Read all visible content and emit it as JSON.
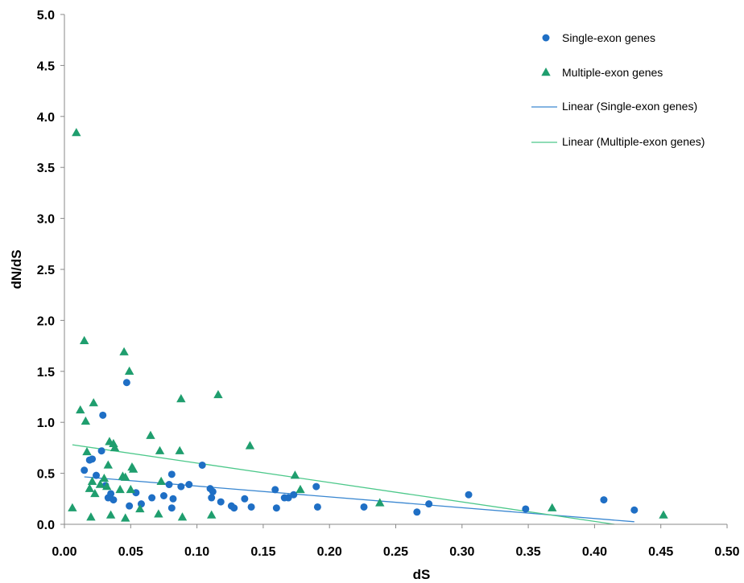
{
  "chart_data": {
    "type": "scatter",
    "title": "",
    "xlabel": "dS",
    "ylabel": "dN/dS",
    "xlim": [
      0,
      0.5
    ],
    "ylim": [
      0,
      5
    ],
    "xticks": [
      "0.00",
      "0.05",
      "0.10",
      "0.15",
      "0.20",
      "0.25",
      "0.30",
      "0.35",
      "0.40",
      "0.45",
      "0.50"
    ],
    "yticks": [
      "0.0",
      "0.5",
      "1.0",
      "1.5",
      "2.0",
      "2.5",
      "3.0",
      "3.5",
      "4.0",
      "4.5",
      "5.0"
    ],
    "grid": false,
    "legend_position": "top-right",
    "series": [
      {
        "name": "Single-exon genes",
        "marker": "circle",
        "color": "#1f6fc5",
        "points": [
          [
            0.015,
            0.53
          ],
          [
            0.019,
            0.63
          ],
          [
            0.021,
            0.64
          ],
          [
            0.024,
            0.48
          ],
          [
            0.028,
            0.72
          ],
          [
            0.029,
            1.07
          ],
          [
            0.031,
            0.38
          ],
          [
            0.033,
            0.26
          ],
          [
            0.035,
            0.3
          ],
          [
            0.037,
            0.24
          ],
          [
            0.047,
            1.39
          ],
          [
            0.049,
            0.18
          ],
          [
            0.054,
            0.31
          ],
          [
            0.058,
            0.2
          ],
          [
            0.066,
            0.26
          ],
          [
            0.075,
            0.28
          ],
          [
            0.079,
            0.39
          ],
          [
            0.081,
            0.49
          ],
          [
            0.081,
            0.16
          ],
          [
            0.082,
            0.25
          ],
          [
            0.088,
            0.37
          ],
          [
            0.094,
            0.39
          ],
          [
            0.104,
            0.58
          ],
          [
            0.11,
            0.35
          ],
          [
            0.111,
            0.26
          ],
          [
            0.112,
            0.32
          ],
          [
            0.118,
            0.22
          ],
          [
            0.126,
            0.18
          ],
          [
            0.128,
            0.16
          ],
          [
            0.136,
            0.25
          ],
          [
            0.141,
            0.17
          ],
          [
            0.159,
            0.34
          ],
          [
            0.16,
            0.16
          ],
          [
            0.166,
            0.26
          ],
          [
            0.169,
            0.26
          ],
          [
            0.173,
            0.29
          ],
          [
            0.19,
            0.37
          ],
          [
            0.191,
            0.17
          ],
          [
            0.226,
            0.17
          ],
          [
            0.266,
            0.12
          ],
          [
            0.275,
            0.2
          ],
          [
            0.305,
            0.29
          ],
          [
            0.348,
            0.15
          ],
          [
            0.407,
            0.24
          ],
          [
            0.43,
            0.14
          ]
        ]
      },
      {
        "name": "Multiple-exon genes",
        "marker": "triangle",
        "color": "#1f9e6e",
        "points": [
          [
            0.006,
            0.16
          ],
          [
            0.009,
            3.84
          ],
          [
            0.012,
            1.12
          ],
          [
            0.015,
            1.8
          ],
          [
            0.016,
            1.01
          ],
          [
            0.017,
            0.71
          ],
          [
            0.019,
            0.35
          ],
          [
            0.02,
            0.07
          ],
          [
            0.021,
            0.42
          ],
          [
            0.022,
            1.19
          ],
          [
            0.023,
            0.3
          ],
          [
            0.027,
            0.39
          ],
          [
            0.03,
            0.45
          ],
          [
            0.032,
            0.37
          ],
          [
            0.033,
            0.58
          ],
          [
            0.034,
            0.81
          ],
          [
            0.035,
            0.09
          ],
          [
            0.037,
            0.79
          ],
          [
            0.038,
            0.75
          ],
          [
            0.042,
            0.34
          ],
          [
            0.044,
            0.47
          ],
          [
            0.045,
            1.69
          ],
          [
            0.046,
            0.06
          ],
          [
            0.046,
            0.46
          ],
          [
            0.049,
            1.5
          ],
          [
            0.05,
            0.34
          ],
          [
            0.051,
            0.56
          ],
          [
            0.052,
            0.54
          ],
          [
            0.057,
            0.15
          ],
          [
            0.065,
            0.87
          ],
          [
            0.071,
            0.1
          ],
          [
            0.072,
            0.72
          ],
          [
            0.073,
            0.42
          ],
          [
            0.087,
            0.72
          ],
          [
            0.088,
            1.23
          ],
          [
            0.089,
            0.07
          ],
          [
            0.111,
            0.09
          ],
          [
            0.116,
            1.27
          ],
          [
            0.14,
            0.77
          ],
          [
            0.174,
            0.48
          ],
          [
            0.178,
            0.34
          ],
          [
            0.238,
            0.21
          ],
          [
            0.368,
            0.16
          ],
          [
            0.452,
            0.09
          ]
        ]
      }
    ],
    "trendlines": [
      {
        "name": "Linear (Single-exon genes)",
        "color": "#3a87d1",
        "x": [
          0.015,
          0.43
        ],
        "y": [
          0.465,
          0.025
        ]
      },
      {
        "name": "Linear (Multiple-exon genes)",
        "color": "#4cc88a",
        "x": [
          0.006,
          0.415
        ],
        "y": [
          0.78,
          0.0
        ]
      }
    ]
  }
}
